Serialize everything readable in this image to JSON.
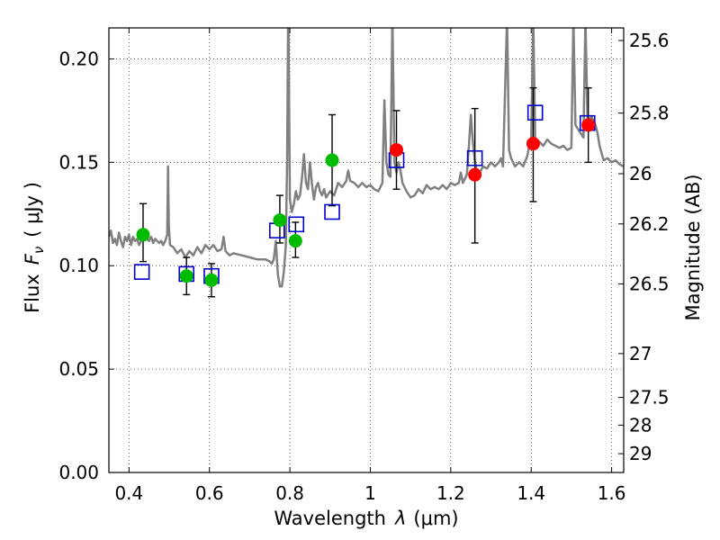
{
  "chart_data": {
    "type": "scatter",
    "title": "",
    "xlabel": {
      "prefix": "Wavelength",
      "symbol": "λ",
      "unit": "(μm)"
    },
    "ylabel": {
      "prefix": "Flux",
      "symbol": "F",
      "subscript": "ν",
      "unit": "( μJy )"
    },
    "y2label": "Magnitude (AB)",
    "xlim": [
      0.35,
      1.63
    ],
    "ylim": [
      0.0,
      0.215
    ],
    "xticks": [
      0.4,
      0.6,
      0.8,
      1.0,
      1.2,
      1.4,
      1.6
    ],
    "xtick_labels": [
      "0.4",
      "0.6",
      "0.8",
      "1",
      "1.2",
      "1.4",
      "1.6"
    ],
    "yticks": [
      0.0,
      0.05,
      0.1,
      0.15,
      0.2
    ],
    "ytick_labels": [
      "0.00",
      "0.05",
      "0.10",
      "0.15",
      "0.20"
    ],
    "mag_ticks": [
      {
        "label": "25.6",
        "flux": 0.2089
      },
      {
        "label": "25.8",
        "flux": 0.1738
      },
      {
        "label": "26",
        "flux": 0.1445
      },
      {
        "label": "26.2",
        "flux": 0.1202
      },
      {
        "label": "26.5",
        "flux": 0.0912
      },
      {
        "label": "27",
        "flux": 0.0575
      },
      {
        "label": "27.5",
        "flux": 0.0363
      },
      {
        "label": "28",
        "flux": 0.0229
      },
      {
        "label": "29",
        "flux": 0.0091
      }
    ],
    "grid": true,
    "colors": {
      "model": "#808080",
      "observed_optical": "#00bb00",
      "observed_nir": "#ff0000",
      "model_photometry": "#0000cc",
      "errorbar": "#000000"
    },
    "series": [
      {
        "name": "model-spectrum",
        "kind": "line",
        "points": [
          [
            0.35,
            0.114
          ],
          [
            0.355,
            0.117
          ],
          [
            0.36,
            0.111
          ],
          [
            0.365,
            0.113
          ],
          [
            0.37,
            0.11
          ],
          [
            0.375,
            0.116
          ],
          [
            0.38,
            0.112
          ],
          [
            0.385,
            0.109
          ],
          [
            0.39,
            0.114
          ],
          [
            0.395,
            0.112
          ],
          [
            0.4,
            0.115
          ],
          [
            0.405,
            0.11
          ],
          [
            0.41,
            0.114
          ],
          [
            0.415,
            0.112
          ],
          [
            0.42,
            0.113
          ],
          [
            0.425,
            0.11
          ],
          [
            0.43,
            0.112
          ],
          [
            0.435,
            0.114
          ],
          [
            0.44,
            0.117
          ],
          [
            0.445,
            0.113
          ],
          [
            0.45,
            0.112
          ],
          [
            0.455,
            0.114
          ],
          [
            0.46,
            0.111
          ],
          [
            0.465,
            0.113
          ],
          [
            0.47,
            0.112
          ],
          [
            0.475,
            0.111
          ],
          [
            0.48,
            0.112
          ],
          [
            0.485,
            0.11
          ],
          [
            0.49,
            0.112
          ],
          [
            0.495,
            0.115
          ],
          [
            0.497,
            0.148
          ],
          [
            0.499,
            0.119
          ],
          [
            0.502,
            0.11
          ],
          [
            0.51,
            0.109
          ],
          [
            0.52,
            0.106
          ],
          [
            0.53,
            0.108
          ],
          [
            0.54,
            0.104
          ],
          [
            0.55,
            0.107
          ],
          [
            0.56,
            0.105
          ],
          [
            0.57,
            0.109
          ],
          [
            0.58,
            0.106
          ],
          [
            0.59,
            0.11
          ],
          [
            0.6,
            0.108
          ],
          [
            0.61,
            0.11
          ],
          [
            0.62,
            0.107
          ],
          [
            0.63,
            0.108
          ],
          [
            0.635,
            0.114
          ],
          [
            0.64,
            0.107
          ],
          [
            0.65,
            0.105
          ],
          [
            0.66,
            0.106
          ],
          [
            0.68,
            0.105
          ],
          [
            0.7,
            0.104
          ],
          [
            0.72,
            0.103
          ],
          [
            0.74,
            0.103
          ],
          [
            0.75,
            0.102
          ],
          [
            0.755,
            0.101
          ],
          [
            0.76,
            0.103
          ],
          [
            0.765,
            0.112
          ],
          [
            0.77,
            0.096
          ],
          [
            0.775,
            0.09
          ],
          [
            0.78,
            0.09
          ],
          [
            0.785,
            0.097
          ],
          [
            0.79,
            0.11
          ],
          [
            0.793,
            0.15
          ],
          [
            0.796,
            0.23
          ],
          [
            0.8,
            0.132
          ],
          [
            0.805,
            0.126
          ],
          [
            0.81,
            0.13
          ],
          [
            0.815,
            0.136
          ],
          [
            0.82,
            0.132
          ],
          [
            0.825,
            0.134
          ],
          [
            0.83,
            0.142
          ],
          [
            0.835,
            0.154
          ],
          [
            0.84,
            0.14
          ],
          [
            0.845,
            0.137
          ],
          [
            0.85,
            0.15
          ],
          [
            0.855,
            0.139
          ],
          [
            0.86,
            0.132
          ],
          [
            0.865,
            0.138
          ],
          [
            0.87,
            0.14
          ],
          [
            0.875,
            0.136
          ],
          [
            0.88,
            0.134
          ],
          [
            0.885,
            0.137
          ],
          [
            0.89,
            0.133
          ],
          [
            0.9,
            0.136
          ],
          [
            0.91,
            0.134
          ],
          [
            0.92,
            0.14
          ],
          [
            0.93,
            0.138
          ],
          [
            0.94,
            0.141
          ],
          [
            0.945,
            0.146
          ],
          [
            0.95,
            0.141
          ],
          [
            0.96,
            0.14
          ],
          [
            0.97,
            0.138
          ],
          [
            0.98,
            0.14
          ],
          [
            0.99,
            0.138
          ],
          [
            1.0,
            0.139
          ],
          [
            1.01,
            0.137
          ],
          [
            1.02,
            0.136
          ],
          [
            1.03,
            0.14
          ],
          [
            1.035,
            0.18
          ],
          [
            1.04,
            0.15
          ],
          [
            1.045,
            0.144
          ],
          [
            1.05,
            0.143
          ],
          [
            1.055,
            0.22
          ],
          [
            1.06,
            0.15
          ],
          [
            1.065,
            0.145
          ],
          [
            1.07,
            0.15
          ],
          [
            1.075,
            0.146
          ],
          [
            1.08,
            0.14
          ],
          [
            1.09,
            0.136
          ],
          [
            1.1,
            0.133
          ],
          [
            1.11,
            0.134
          ],
          [
            1.12,
            0.137
          ],
          [
            1.13,
            0.135
          ],
          [
            1.14,
            0.139
          ],
          [
            1.15,
            0.137
          ],
          [
            1.16,
            0.138
          ],
          [
            1.17,
            0.137
          ],
          [
            1.18,
            0.139
          ],
          [
            1.19,
            0.137
          ],
          [
            1.2,
            0.14
          ],
          [
            1.21,
            0.139
          ],
          [
            1.22,
            0.14
          ],
          [
            1.225,
            0.145
          ],
          [
            1.23,
            0.14
          ],
          [
            1.24,
            0.144
          ],
          [
            1.245,
            0.158
          ],
          [
            1.25,
            0.173
          ],
          [
            1.255,
            0.16
          ],
          [
            1.26,
            0.15
          ],
          [
            1.265,
            0.146
          ],
          [
            1.27,
            0.144
          ],
          [
            1.28,
            0.148
          ],
          [
            1.29,
            0.147
          ],
          [
            1.3,
            0.15
          ],
          [
            1.31,
            0.148
          ],
          [
            1.32,
            0.15
          ],
          [
            1.325,
            0.152
          ],
          [
            1.33,
            0.148
          ],
          [
            1.34,
            0.22
          ],
          [
            1.345,
            0.156
          ],
          [
            1.35,
            0.152
          ],
          [
            1.36,
            0.148
          ],
          [
            1.37,
            0.15
          ],
          [
            1.38,
            0.148
          ],
          [
            1.39,
            0.153
          ],
          [
            1.395,
            0.158
          ],
          [
            1.4,
            0.16
          ],
          [
            1.405,
            0.22
          ],
          [
            1.41,
            0.16
          ],
          [
            1.42,
            0.16
          ],
          [
            1.43,
            0.158
          ],
          [
            1.44,
            0.161
          ],
          [
            1.45,
            0.159
          ],
          [
            1.46,
            0.158
          ],
          [
            1.47,
            0.157
          ],
          [
            1.48,
            0.158
          ],
          [
            1.49,
            0.156
          ],
          [
            1.5,
            0.157
          ],
          [
            1.505,
            0.22
          ],
          [
            1.51,
            0.168
          ],
          [
            1.52,
            0.165
          ],
          [
            1.53,
            0.162
          ],
          [
            1.535,
            0.22
          ],
          [
            1.54,
            0.17
          ],
          [
            1.55,
            0.172
          ],
          [
            1.56,
            0.168
          ],
          [
            1.565,
            0.164
          ],
          [
            1.57,
            0.158
          ],
          [
            1.58,
            0.151
          ],
          [
            1.59,
            0.152
          ],
          [
            1.6,
            0.15
          ],
          [
            1.61,
            0.151
          ],
          [
            1.62,
            0.149
          ],
          [
            1.63,
            0.148
          ]
        ]
      },
      {
        "name": "observed-optical",
        "kind": "points",
        "marker": "circle",
        "points": [
          {
            "x": 0.435,
            "y": 0.115
          },
          {
            "x": 0.543,
            "y": 0.095
          },
          {
            "x": 0.605,
            "y": 0.093
          },
          {
            "x": 0.775,
            "y": 0.122
          },
          {
            "x": 0.814,
            "y": 0.112
          },
          {
            "x": 0.905,
            "y": 0.151
          }
        ]
      },
      {
        "name": "observed-nir",
        "kind": "points",
        "marker": "circle",
        "points": [
          {
            "x": 1.065,
            "y": 0.156
          },
          {
            "x": 1.26,
            "y": 0.144
          },
          {
            "x": 1.405,
            "y": 0.159
          },
          {
            "x": 1.542,
            "y": 0.168
          }
        ]
      },
      {
        "name": "model-photometry",
        "kind": "points",
        "marker": "square",
        "points": [
          {
            "x": 0.432,
            "y": 0.097
          },
          {
            "x": 0.543,
            "y": 0.096
          },
          {
            "x": 0.605,
            "y": 0.095
          },
          {
            "x": 0.768,
            "y": 0.117
          },
          {
            "x": 0.816,
            "y": 0.12
          },
          {
            "x": 0.905,
            "y": 0.126
          },
          {
            "x": 1.065,
            "y": 0.151
          },
          {
            "x": 1.26,
            "y": 0.152
          },
          {
            "x": 1.41,
            "y": 0.174
          },
          {
            "x": 1.54,
            "y": 0.169
          }
        ]
      },
      {
        "name": "error-bars",
        "kind": "errorbars",
        "bars": [
          {
            "x": 0.435,
            "low": 0.102,
            "high": 0.13
          },
          {
            "x": 0.543,
            "low": 0.086,
            "high": 0.104
          },
          {
            "x": 0.605,
            "low": 0.085,
            "high": 0.101
          },
          {
            "x": 0.775,
            "low": 0.111,
            "high": 0.134
          },
          {
            "x": 0.814,
            "low": 0.104,
            "high": 0.121
          },
          {
            "x": 0.905,
            "low": 0.129,
            "high": 0.173
          },
          {
            "x": 1.065,
            "low": 0.137,
            "high": 0.175
          },
          {
            "x": 1.26,
            "low": 0.111,
            "high": 0.176
          },
          {
            "x": 1.405,
            "low": 0.131,
            "high": 0.186
          },
          {
            "x": 1.542,
            "low": 0.15,
            "high": 0.186
          }
        ]
      }
    ]
  }
}
